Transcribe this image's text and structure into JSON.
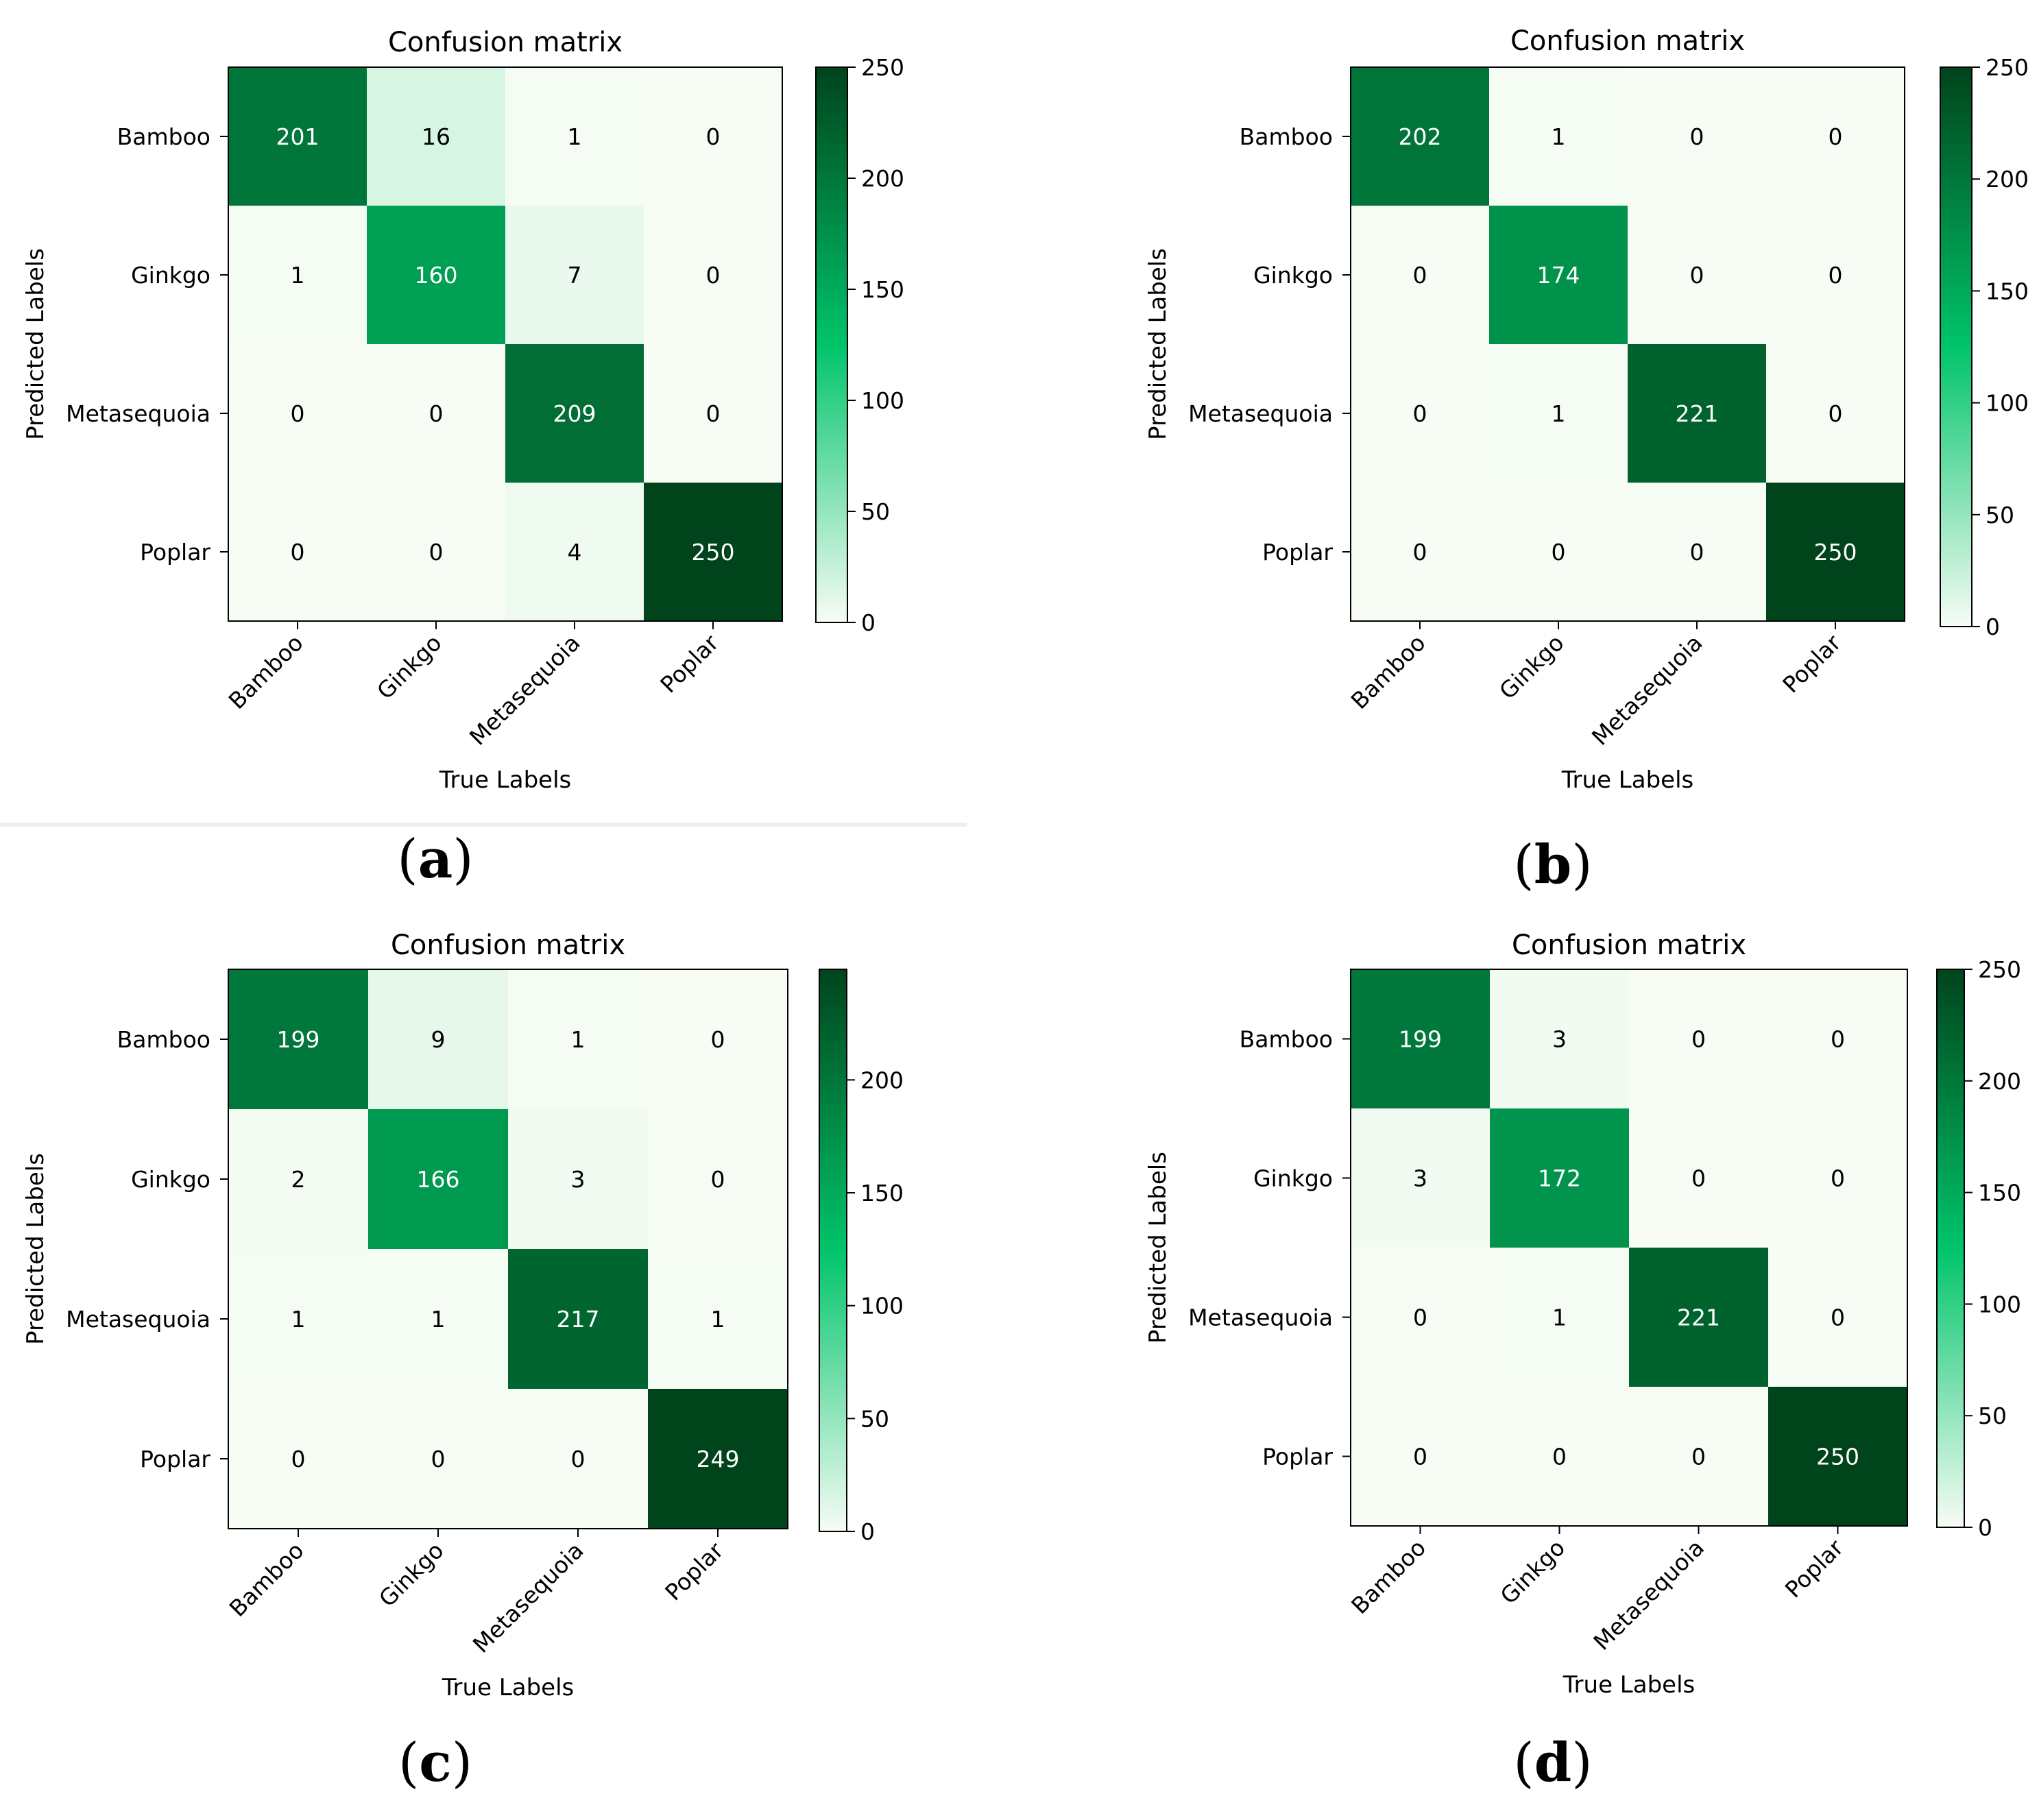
{
  "color_scale": {
    "low": "#f7fcf5",
    "mid": "#00c46a",
    "high": "#00441b",
    "ticks": [
      0,
      50,
      100,
      150,
      200,
      250
    ]
  },
  "chart_data": [
    {
      "type": "heatmap",
      "panel_label": "(a)",
      "title": "Confusion matrix",
      "xlabel": "True Labels",
      "ylabel": "Predicted Labels",
      "x_categories": [
        "Bamboo",
        "Ginkgo",
        "Metasequoia",
        "Poplar"
      ],
      "y_categories": [
        "Bamboo",
        "Ginkgo",
        "Metasequoia",
        "Poplar"
      ],
      "values": [
        [
          201,
          16,
          1,
          0
        ],
        [
          1,
          160,
          7,
          0
        ],
        [
          0,
          0,
          209,
          0
        ],
        [
          0,
          0,
          4,
          250
        ]
      ],
      "colorbar": {
        "min": 0,
        "max": 250,
        "ticks": [
          0,
          50,
          100,
          150,
          200,
          250
        ]
      }
    },
    {
      "type": "heatmap",
      "panel_label": "(b)",
      "title": "Confusion matrix",
      "xlabel": "True Labels",
      "ylabel": "Predicted Labels",
      "x_categories": [
        "Bamboo",
        "Ginkgo",
        "Metasequoia",
        "Poplar"
      ],
      "y_categories": [
        "Bamboo",
        "Ginkgo",
        "Metasequoia",
        "Poplar"
      ],
      "values": [
        [
          202,
          1,
          0,
          0
        ],
        [
          0,
          174,
          0,
          0
        ],
        [
          0,
          1,
          221,
          0
        ],
        [
          0,
          0,
          0,
          250
        ]
      ],
      "colorbar": {
        "min": 0,
        "max": 250,
        "ticks": [
          0,
          50,
          100,
          150,
          200,
          250
        ]
      }
    },
    {
      "type": "heatmap",
      "panel_label": "(c)",
      "title": "Confusion matrix",
      "xlabel": "True Labels",
      "ylabel": "Predicted Labels",
      "x_categories": [
        "Bamboo",
        "Ginkgo",
        "Metasequoia",
        "Poplar"
      ],
      "y_categories": [
        "Bamboo",
        "Ginkgo",
        "Metasequoia",
        "Poplar"
      ],
      "values": [
        [
          199,
          9,
          1,
          0
        ],
        [
          2,
          166,
          3,
          0
        ],
        [
          1,
          1,
          217,
          1
        ],
        [
          0,
          0,
          0,
          249
        ]
      ],
      "colorbar": {
        "min": 0,
        "max": 249,
        "ticks": [
          0,
          50,
          100,
          150,
          200
        ]
      }
    },
    {
      "type": "heatmap",
      "panel_label": "(d)",
      "title": "Confusion matrix",
      "xlabel": "True Labels",
      "ylabel": "Predicted Labels",
      "x_categories": [
        "Bamboo",
        "Ginkgo",
        "Metasequoia",
        "Poplar"
      ],
      "y_categories": [
        "Bamboo",
        "Ginkgo",
        "Metasequoia",
        "Poplar"
      ],
      "values": [
        [
          199,
          3,
          0,
          0
        ],
        [
          3,
          172,
          0,
          0
        ],
        [
          0,
          1,
          221,
          0
        ],
        [
          0,
          0,
          0,
          250
        ]
      ],
      "colorbar": {
        "min": 0,
        "max": 250,
        "ticks": [
          0,
          50,
          100,
          150,
          200,
          250
        ]
      }
    }
  ]
}
